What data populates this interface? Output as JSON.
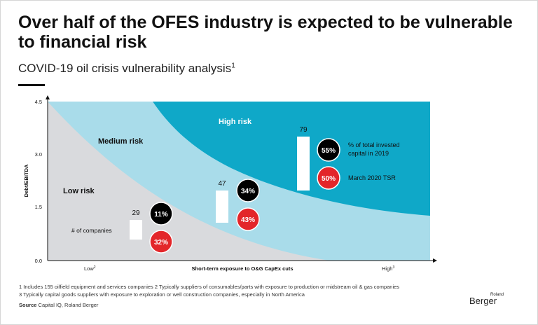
{
  "header": {
    "title_line1": "Over half of the OFES industry is expected to be vulnerable",
    "title_line2": "to financial risk",
    "subtitle": "COVID-19 oil crisis vulnerability analysis",
    "subtitle_note": "1"
  },
  "chart_data": {
    "type": "scatter",
    "ylabel": "Debt/EBITDA",
    "xlabel": "Short-term exposure to O&G CapEx cuts",
    "y_ticks": [
      "0.0",
      "1.5",
      "3.0",
      "4.5"
    ],
    "ylim": [
      0,
      4.5
    ],
    "x_tick_low": "Low",
    "x_tick_low_note": "2",
    "x_tick_high": "High",
    "x_tick_high_note": "3",
    "zones": [
      {
        "label": "Low risk",
        "color": "#d9dadd"
      },
      {
        "label": "Medium risk",
        "color": "#a9dcea"
      },
      {
        "label": "High risk",
        "color": "#0fa8c8"
      }
    ],
    "groups": [
      {
        "companies": 29,
        "invested_capital_pct": "11%",
        "tsr_pct": "32%"
      },
      {
        "companies": 47,
        "invested_capital_pct": "34%",
        "tsr_pct": "43%"
      },
      {
        "companies": 79,
        "invested_capital_pct": "55%",
        "tsr_pct": "50%"
      }
    ],
    "legend": {
      "companies": "# of companies",
      "invested_capital_line1": "% of total invested",
      "invested_capital_line2": "capital in 2019",
      "tsr": "March 2020 TSR"
    },
    "colors": {
      "capital_circle": "#000000",
      "tsr_circle": "#e3262a",
      "bar": "#ffffff"
    }
  },
  "footnotes": {
    "line1": "1  Includes 155 oilfield equipment and services companies     2  Typically suppliers of consumables/parts with exposure to production or midstream oil & gas companies",
    "line2": "3  Typically capital goods suppliers with exposure to exploration or well construction companies, especially in North America",
    "source_label": "Source",
    "source_text": "Capital IQ, Roland Berger"
  },
  "logo": {
    "small": "Roland",
    "name": "Berger",
    "letter": "B"
  }
}
